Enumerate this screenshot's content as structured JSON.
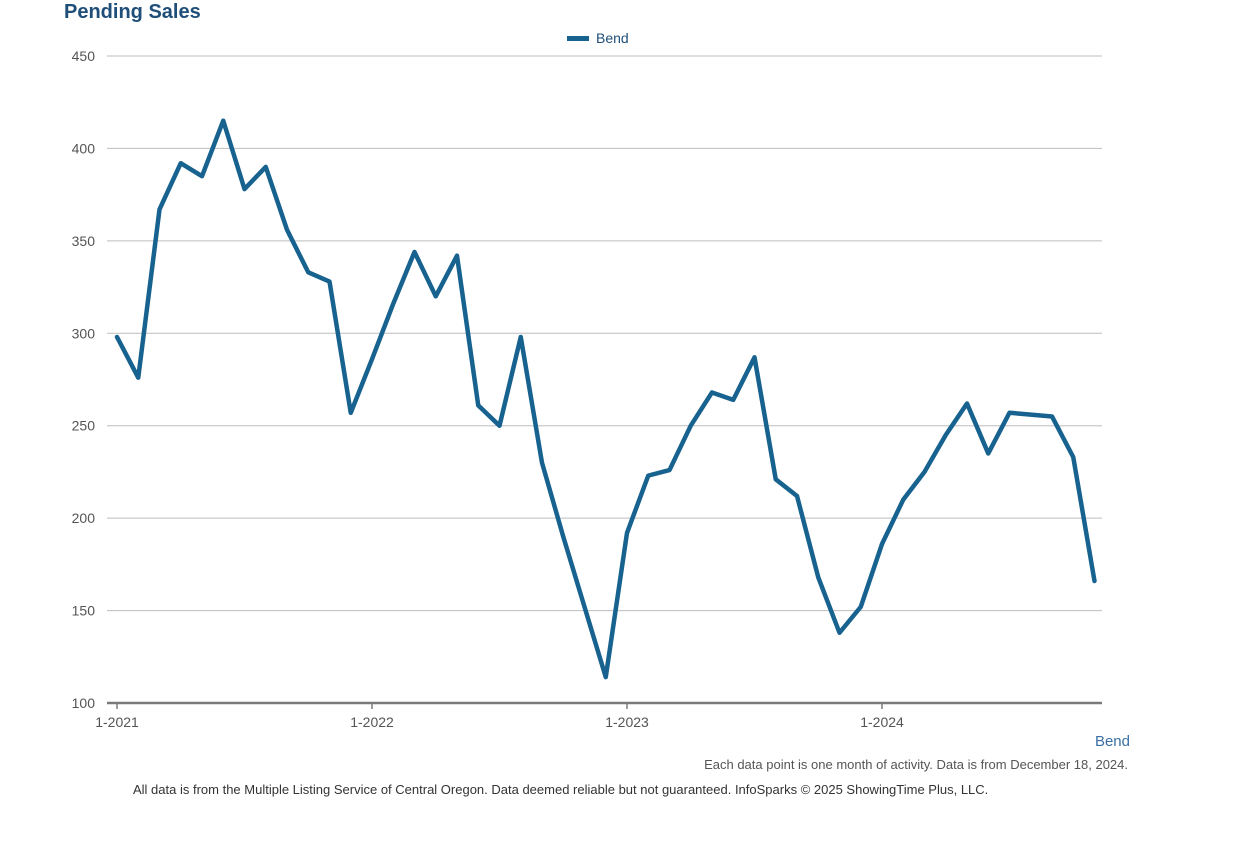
{
  "chart_data": {
    "type": "line",
    "title": "Pending Sales",
    "x_labels": [
      "1-2021",
      "1-2022",
      "1-2023",
      "1-2024"
    ],
    "y_ticks": [
      100,
      150,
      200,
      250,
      300,
      350,
      400,
      450
    ],
    "ylim": [
      100,
      450
    ],
    "grid": true,
    "legend": "top-center",
    "series": [
      {
        "name": "Bend",
        "color": "#17628f",
        "values": [
          298,
          276,
          367,
          392,
          385,
          415,
          378,
          390,
          356,
          333,
          328,
          257,
          286,
          316,
          344,
          320,
          342,
          261,
          250,
          298,
          230,
          190,
          152,
          114,
          192,
          223,
          226,
          250,
          268,
          264,
          287,
          221,
          212,
          168,
          138,
          152,
          186,
          210,
          225,
          245,
          262,
          235,
          257,
          256,
          255,
          233,
          166
        ]
      }
    ],
    "x_axis_label": "Bend"
  },
  "note": "Each data point is one month of activity. Data is from December 18, 2024.",
  "footer": "All data is from the Multiple Listing Service of Central Oregon. Data deemed reliable but not guaranteed. InfoSparks © 2025 ShowingTime Plus, LLC."
}
